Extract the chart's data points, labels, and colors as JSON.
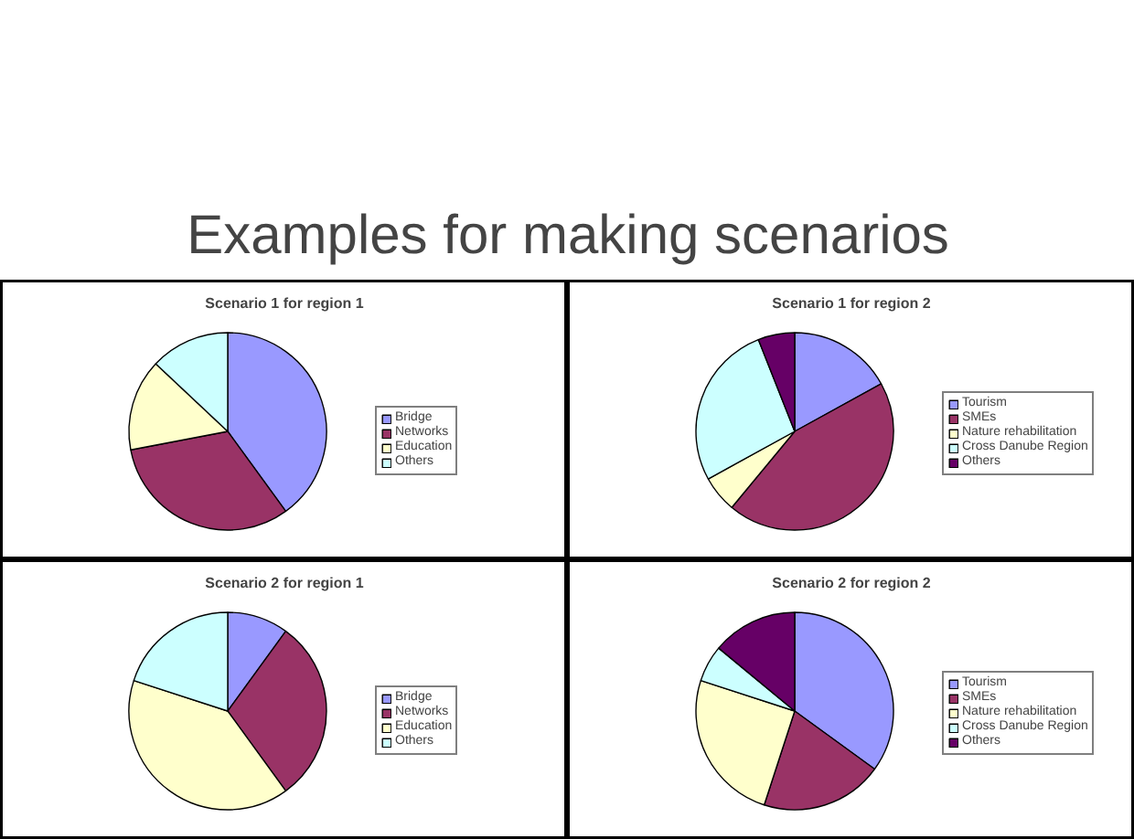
{
  "chart_data": [
    {
      "type": "other",
      "title": "Examples for making scenarios"
    },
    {
      "type": "pie",
      "title": "Scenario 1 for region 1",
      "categories": [
        "Bridge",
        "Networks",
        "Education",
        "Others"
      ],
      "values": [
        40,
        32,
        15,
        13
      ],
      "colors": [
        "#9999ff",
        "#993366",
        "#ffffcc",
        "#ccffff"
      ],
      "legend": "right"
    },
    {
      "type": "pie",
      "title": "Scenario 1 for region 2",
      "categories": [
        "Tourism",
        "SMEs",
        "Nature rehabilitation",
        "Cross Danube Region",
        "Others"
      ],
      "values": [
        17,
        44,
        6,
        27,
        6
      ],
      "colors": [
        "#9999ff",
        "#993366",
        "#ffffcc",
        "#ccffff",
        "#660066"
      ],
      "legend": "right"
    },
    {
      "type": "pie",
      "title": "Scenario 2 for region 1",
      "categories": [
        "Bridge",
        "Networks",
        "Education",
        "Others"
      ],
      "values": [
        10,
        30,
        40,
        20
      ],
      "colors": [
        "#9999ff",
        "#993366",
        "#ffffcc",
        "#ccffff"
      ],
      "legend": "right"
    },
    {
      "type": "pie",
      "title": "Scenario 2 for region 2",
      "categories": [
        "Tourism",
        "SMEs",
        "Nature rehabilitation",
        "Cross Danube Region",
        "Others"
      ],
      "values": [
        35,
        20,
        25,
        6,
        14
      ],
      "colors": [
        "#9999ff",
        "#993366",
        "#ffffcc",
        "#ccffff",
        "#660066"
      ],
      "legend": "right"
    }
  ]
}
